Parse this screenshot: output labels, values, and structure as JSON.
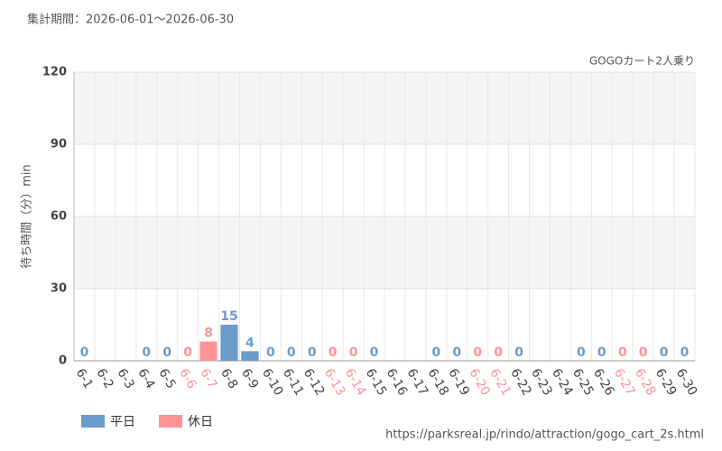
{
  "chart_data": {
    "type": "bar",
    "header": "集計期間：2026-06-01～2026-06-30",
    "title": "GOGOカート2人乗り",
    "y_label": "待ち時間（分）min",
    "source": "https://parksreal.jp/rindo/attraction/gogo_cart_2s.html",
    "categories": [
      "6-1",
      "6-2",
      "6-3",
      "6-4",
      "6-5",
      "6-6",
      "6-7",
      "6-8",
      "6-9",
      "6-10",
      "6-11",
      "6-12",
      "6-13",
      "6-14",
      "6-15",
      "6-16",
      "6-17",
      "6-18",
      "6-19",
      "6-20",
      "6-21",
      "6-22",
      "6-23",
      "6-24",
      "6-25",
      "6-26",
      "6-27",
      "6-28",
      "6-29",
      "6-30"
    ],
    "series": [
      {
        "name": "平日",
        "color": "#6a9cc9",
        "values": [
          0,
          null,
          null,
          0,
          0,
          null,
          null,
          15,
          4,
          0,
          0,
          0,
          null,
          null,
          0,
          null,
          null,
          0,
          0,
          null,
          null,
          0,
          null,
          null,
          0,
          0,
          null,
          null,
          0,
          0
        ]
      },
      {
        "name": "休日",
        "color": "#ff9393",
        "values": [
          null,
          null,
          null,
          null,
          null,
          0,
          8,
          null,
          null,
          null,
          null,
          null,
          0,
          0,
          null,
          null,
          null,
          null,
          null,
          0,
          0,
          null,
          null,
          null,
          null,
          null,
          0,
          0,
          null,
          null
        ]
      }
    ],
    "ylim": [
      0,
      120
    ],
    "yticks": [
      0,
      30,
      60,
      90,
      120
    ],
    "grid": true
  }
}
